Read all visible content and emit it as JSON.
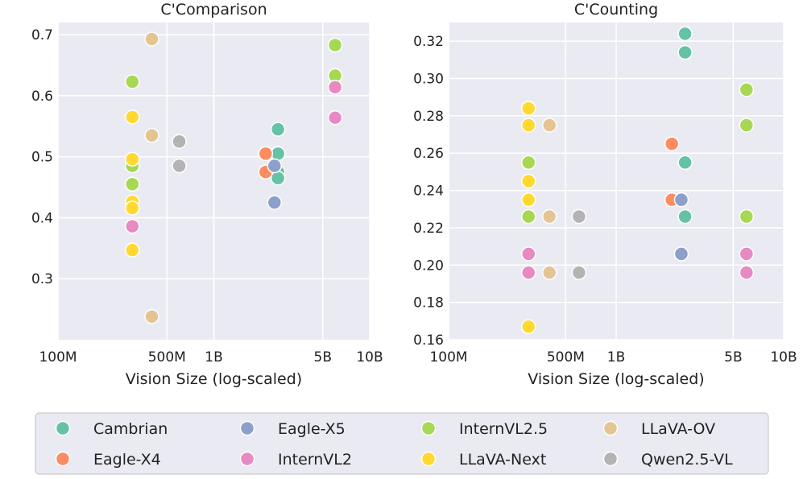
{
  "chart_data": [
    {
      "type": "scatter",
      "title": "C'Comparison",
      "xlabel": "Vision Size (log-scaled)",
      "ylabel": "",
      "xscale": "log",
      "xlim": [
        100,
        10000
      ],
      "ylim": [
        0.2,
        0.72
      ],
      "xticks": [
        {
          "value": 100,
          "label": "100M"
        },
        {
          "value": 500,
          "label": "500M"
        },
        {
          "value": 1000,
          "label": "1B"
        },
        {
          "value": 5000,
          "label": "5B"
        },
        {
          "value": 10000,
          "label": "10B"
        }
      ],
      "yticks": [
        {
          "value": 0.3,
          "label": "0.3"
        },
        {
          "value": 0.4,
          "label": "0.4"
        },
        {
          "value": 0.5,
          "label": "0.5"
        },
        {
          "value": 0.6,
          "label": "0.6"
        },
        {
          "value": 0.7,
          "label": "0.7"
        }
      ],
      "series": [
        {
          "name": "Cambrian",
          "points": [
            [
              2580,
              0.545
            ],
            [
              2580,
              0.505
            ],
            [
              2580,
              0.475
            ],
            [
              2580,
              0.465
            ]
          ]
        },
        {
          "name": "Eagle-X4",
          "points": [
            [
              2150,
              0.505
            ],
            [
              2150,
              0.475
            ]
          ]
        },
        {
          "name": "Eagle-X5",
          "points": [
            [
              2450,
              0.485
            ],
            [
              2450,
              0.425
            ]
          ]
        },
        {
          "name": "InternVL2.5",
          "points": [
            [
              300,
              0.623
            ],
            [
              300,
              0.485
            ],
            [
              300,
              0.455
            ],
            [
              6000,
              0.683
            ],
            [
              6000,
              0.633
            ]
          ]
        },
        {
          "name": "InternVL2",
          "points": [
            [
              300,
              0.386
            ],
            [
              6000,
              0.614
            ],
            [
              6000,
              0.564
            ]
          ]
        },
        {
          "name": "LLaVA-Next",
          "points": [
            [
              300,
              0.565
            ],
            [
              300,
              0.496
            ],
            [
              300,
              0.426
            ],
            [
              300,
              0.416
            ],
            [
              300,
              0.347
            ]
          ]
        },
        {
          "name": "LLaVA-OV",
          "points": [
            [
              400,
              0.693
            ],
            [
              400,
              0.535
            ],
            [
              400,
              0.238
            ]
          ]
        },
        {
          "name": "Qwen2.5-VL",
          "points": [
            [
              600,
              0.525
            ],
            [
              600,
              0.485
            ]
          ]
        }
      ]
    },
    {
      "type": "scatter",
      "title": "C'Counting",
      "xlabel": "Vision Size (log-scaled)",
      "ylabel": "",
      "xscale": "log",
      "xlim": [
        100,
        10000
      ],
      "ylim": [
        0.16,
        0.33
      ],
      "xticks": [
        {
          "value": 100,
          "label": "100M"
        },
        {
          "value": 500,
          "label": "500M"
        },
        {
          "value": 1000,
          "label": "1B"
        },
        {
          "value": 5000,
          "label": "5B"
        },
        {
          "value": 10000,
          "label": "10B"
        }
      ],
      "yticks": [
        {
          "value": 0.16,
          "label": "0.16"
        },
        {
          "value": 0.18,
          "label": "0.18"
        },
        {
          "value": 0.2,
          "label": "0.20"
        },
        {
          "value": 0.22,
          "label": "0.22"
        },
        {
          "value": 0.24,
          "label": "0.24"
        },
        {
          "value": 0.26,
          "label": "0.26"
        },
        {
          "value": 0.28,
          "label": "0.28"
        },
        {
          "value": 0.3,
          "label": "0.30"
        },
        {
          "value": 0.32,
          "label": "0.32"
        }
      ],
      "series": [
        {
          "name": "Cambrian",
          "points": [
            [
              2580,
              0.324
            ],
            [
              2580,
              0.314
            ],
            [
              2580,
              0.255
            ],
            [
              2580,
              0.226
            ]
          ]
        },
        {
          "name": "Eagle-X4",
          "points": [
            [
              2150,
              0.265
            ],
            [
              2150,
              0.235
            ]
          ]
        },
        {
          "name": "Eagle-X5",
          "points": [
            [
              2450,
              0.235
            ],
            [
              2450,
              0.206
            ]
          ]
        },
        {
          "name": "InternVL2.5",
          "points": [
            [
              300,
              0.255
            ],
            [
              300,
              0.226
            ],
            [
              6000,
              0.294
            ],
            [
              6000,
              0.275
            ],
            [
              6000,
              0.226
            ]
          ]
        },
        {
          "name": "InternVL2",
          "points": [
            [
              300,
              0.206
            ],
            [
              300,
              0.196
            ],
            [
              6000,
              0.206
            ],
            [
              6000,
              0.196
            ]
          ]
        },
        {
          "name": "LLaVA-Next",
          "points": [
            [
              300,
              0.284
            ],
            [
              300,
              0.275
            ],
            [
              300,
              0.245
            ],
            [
              300,
              0.235
            ],
            [
              300,
              0.167
            ]
          ]
        },
        {
          "name": "LLaVA-OV",
          "points": [
            [
              400,
              0.275
            ],
            [
              400,
              0.226
            ],
            [
              400,
              0.196
            ]
          ]
        },
        {
          "name": "Qwen2.5-VL",
          "points": [
            [
              600,
              0.226
            ],
            [
              600,
              0.196
            ]
          ]
        }
      ]
    }
  ],
  "legend": {
    "placement": "bottom",
    "entries": [
      {
        "name": "Cambrian",
        "color": "#66c2a5"
      },
      {
        "name": "Eagle-X5",
        "color": "#8da0cb"
      },
      {
        "name": "InternVL2.5",
        "color": "#a6d854"
      },
      {
        "name": "LLaVA-OV",
        "color": "#e5c494"
      },
      {
        "name": "Eagle-X4",
        "color": "#fc8d62"
      },
      {
        "name": "InternVL2",
        "color": "#e78ac3"
      },
      {
        "name": "LLaVA-Next",
        "color": "#ffd92f"
      },
      {
        "name": "Qwen2.5-VL",
        "color": "#b3b3b3"
      }
    ]
  }
}
